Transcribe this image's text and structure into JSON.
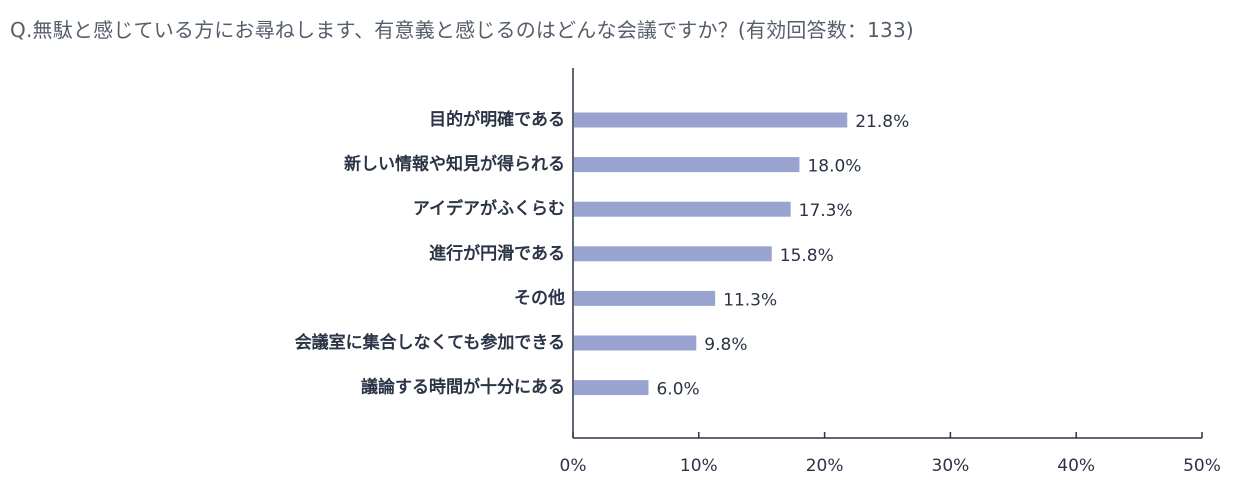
{
  "question": "Q.無駄と感じている方にお尋ねします、有意義と感じるのはどんな会議ですか？(有効回答数：133)",
  "colors": {
    "bar": "#99a3cf",
    "axis": "#2b3446",
    "text": "#2b3446",
    "question": "#555e6b"
  },
  "chart_data": {
    "type": "bar",
    "orientation": "horizontal",
    "title": "",
    "xlabel": "",
    "ylabel": "",
    "categories": [
      "目的が明確である",
      "新しい情報や知見が得られる",
      "アイデアがふくらむ",
      "進行が円滑である",
      "その他",
      "会議室に集合しなくても参加できる",
      "議論する時間が十分にある"
    ],
    "values": [
      21.8,
      18.0,
      17.3,
      15.8,
      11.3,
      9.8,
      6.0
    ],
    "value_labels": [
      "21.8%",
      "18.0%",
      "17.3%",
      "15.8%",
      "11.3%",
      "9.8%",
      "6.0%"
    ],
    "xlim": [
      0,
      50
    ],
    "xticks": [
      0,
      10,
      20,
      30,
      40,
      50
    ],
    "xtick_labels": [
      "0%",
      "10%",
      "20%",
      "30%",
      "40%",
      "50%"
    ],
    "grid": false,
    "legend": "none"
  }
}
